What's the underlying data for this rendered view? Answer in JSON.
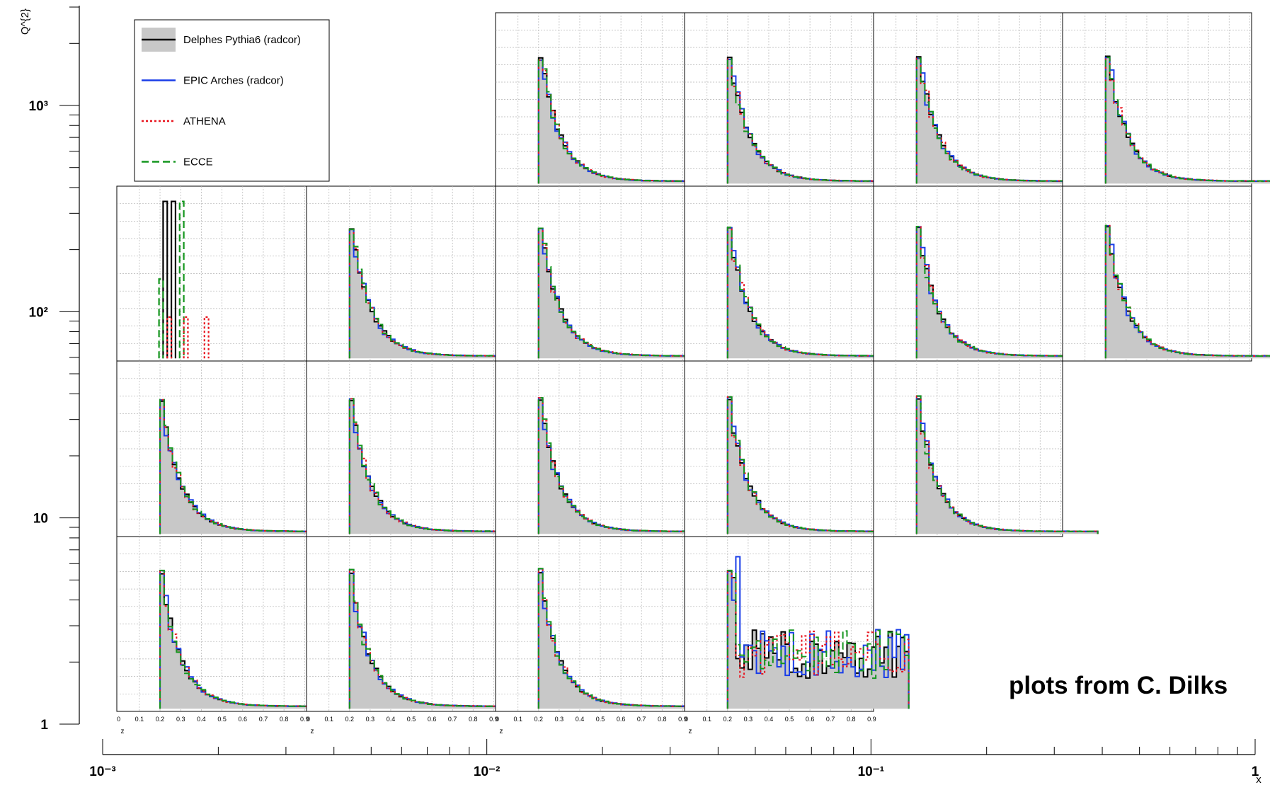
{
  "chart_data": {
    "type": "histogram-grid",
    "y_axis": {
      "label": "Q^{2}",
      "scale": "log",
      "range": [
        1,
        3000
      ],
      "ticks": [
        {
          "value": 1,
          "label": "1"
        },
        {
          "value": 10,
          "label": "10"
        },
        {
          "value": 100,
          "label": "10²"
        },
        {
          "value": 1000,
          "label": "10³"
        }
      ]
    },
    "x_axis": {
      "label": "x",
      "scale": "log",
      "range": [
        0.001,
        1
      ],
      "ticks": [
        {
          "value": 0.001,
          "label": "10⁻³"
        },
        {
          "value": 0.01,
          "label": "10⁻²"
        },
        {
          "value": 0.1,
          "label": "10⁻¹"
        },
        {
          "value": 1,
          "label": "1"
        }
      ]
    },
    "panel_x_axis": {
      "label": "z",
      "range": [
        0,
        0.9
      ],
      "ticks": [
        "0",
        "0.1",
        "0.2",
        "0.3",
        "0.4",
        "0.5",
        "0.6",
        "0.7",
        "0.8",
        "0.9"
      ]
    },
    "series": [
      {
        "name": "Delphes Pythia6 (radcor)",
        "color": "#000000",
        "fill": "#c8c8c8",
        "style": "solid"
      },
      {
        "name": "EPIC Arches (radcor)",
        "color": "#1a3ee8",
        "style": "solid"
      },
      {
        "name": "ATHENA",
        "color": "#e8141e",
        "style": "dotted"
      },
      {
        "name": "ECCE",
        "color": "#14961e",
        "style": "dashed"
      }
    ],
    "panels": [
      {
        "row": 0,
        "col": 2,
        "kind": "A"
      },
      {
        "row": 0,
        "col": 3,
        "kind": "A"
      },
      {
        "row": 0,
        "col": 4,
        "kind": "A"
      },
      {
        "row": 0,
        "col": 5,
        "kind": "A"
      },
      {
        "row": 1,
        "col": 0,
        "kind": "sparse"
      },
      {
        "row": 1,
        "col": 1,
        "kind": "A"
      },
      {
        "row": 1,
        "col": 2,
        "kind": "A"
      },
      {
        "row": 1,
        "col": 3,
        "kind": "A"
      },
      {
        "row": 1,
        "col": 4,
        "kind": "A"
      },
      {
        "row": 1,
        "col": 5,
        "kind": "A"
      },
      {
        "row": 2,
        "col": 0,
        "kind": "A"
      },
      {
        "row": 2,
        "col": 1,
        "kind": "A"
      },
      {
        "row": 2,
        "col": 2,
        "kind": "A"
      },
      {
        "row": 2,
        "col": 3,
        "kind": "A"
      },
      {
        "row": 2,
        "col": 4,
        "kind": "A"
      },
      {
        "row": 3,
        "col": 0,
        "kind": "A"
      },
      {
        "row": 3,
        "col": 1,
        "kind": "A"
      },
      {
        "row": 3,
        "col": 2,
        "kind": "A"
      },
      {
        "row": 3,
        "col": 3,
        "kind": "noisy"
      }
    ]
  },
  "annotation": "plots from C. Dilks"
}
